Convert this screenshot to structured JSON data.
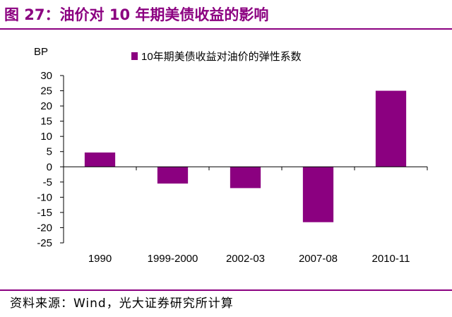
{
  "figure_title": {
    "prefix": "图 27：",
    "text": "油价对 10 年期美债收益的影响"
  },
  "source_note": "资料来源：Wind，光大证券研究所计算",
  "colors": {
    "accent": "#8b0080",
    "bar": "#8b0080",
    "title_prefix": "#8b0080"
  },
  "chart_data": {
    "type": "bar",
    "unit_label": "BP",
    "categories": [
      "1990",
      "1999-2000",
      "2002-03",
      "2007-08",
      "2010-11"
    ],
    "series": [
      {
        "name": "10年期美债收益对油价的弹性系数",
        "values": [
          4.7,
          -5.5,
          -7.0,
          -18.2,
          25.0
        ]
      }
    ],
    "ylim": [
      -25,
      30
    ],
    "yticks": [
      "30",
      "25",
      "20",
      "15",
      "10",
      "5",
      "0",
      "-5",
      "-10",
      "-15",
      "-20",
      "-25"
    ],
    "legend_position": "top",
    "grid": false
  }
}
